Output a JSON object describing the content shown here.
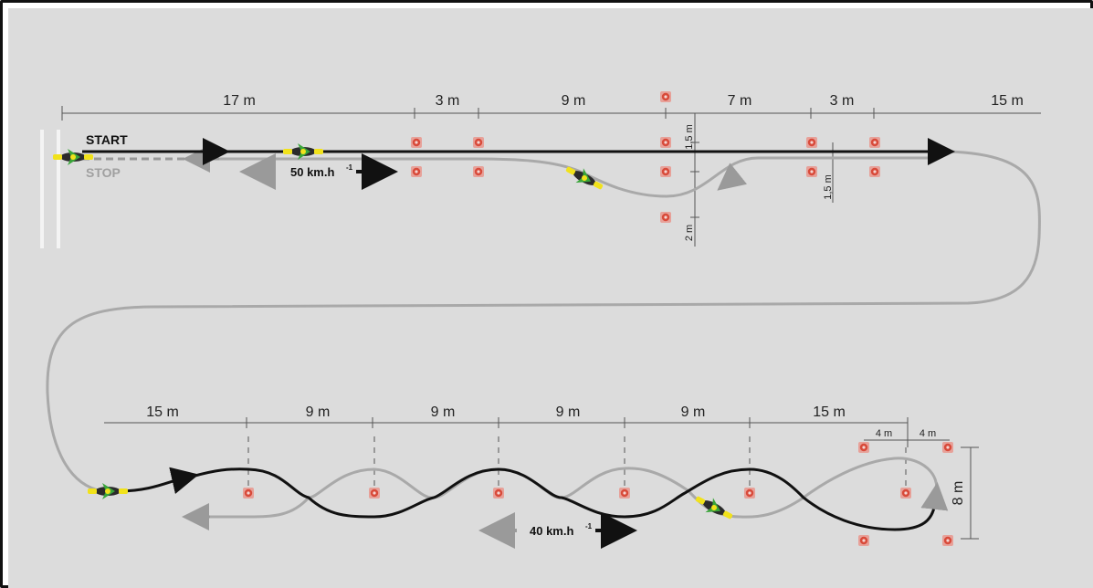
{
  "labels": {
    "start": "START",
    "stop": "STOP",
    "speed_top": "50 km.h",
    "speed_top_sup": "-1",
    "speed_bottom": "40 km.h",
    "speed_bottom_sup": "-1"
  },
  "top_dims": {
    "d1": "17 m",
    "d2": "3 m",
    "d3": "9 m",
    "d4": "7 m",
    "d5": "3 m",
    "d6": "15 m",
    "v1": "1,5 m",
    "v2": "1,5 m",
    "v3": "2 m"
  },
  "bottom_dims": {
    "d1": "15 m",
    "d2": "9 m",
    "d3": "9 m",
    "d4": "9 m",
    "d5": "9 m",
    "d6": "15 m",
    "s1": "4 m",
    "s2": "4 m",
    "h": "8 m"
  },
  "colors": {
    "background": "#dcdcdc",
    "path_black": "#111111",
    "path_gray": "#a9a9a9",
    "cone": "#d84a3a",
    "vehicle": "#f1e21b",
    "rider": "#3aa53a"
  }
}
